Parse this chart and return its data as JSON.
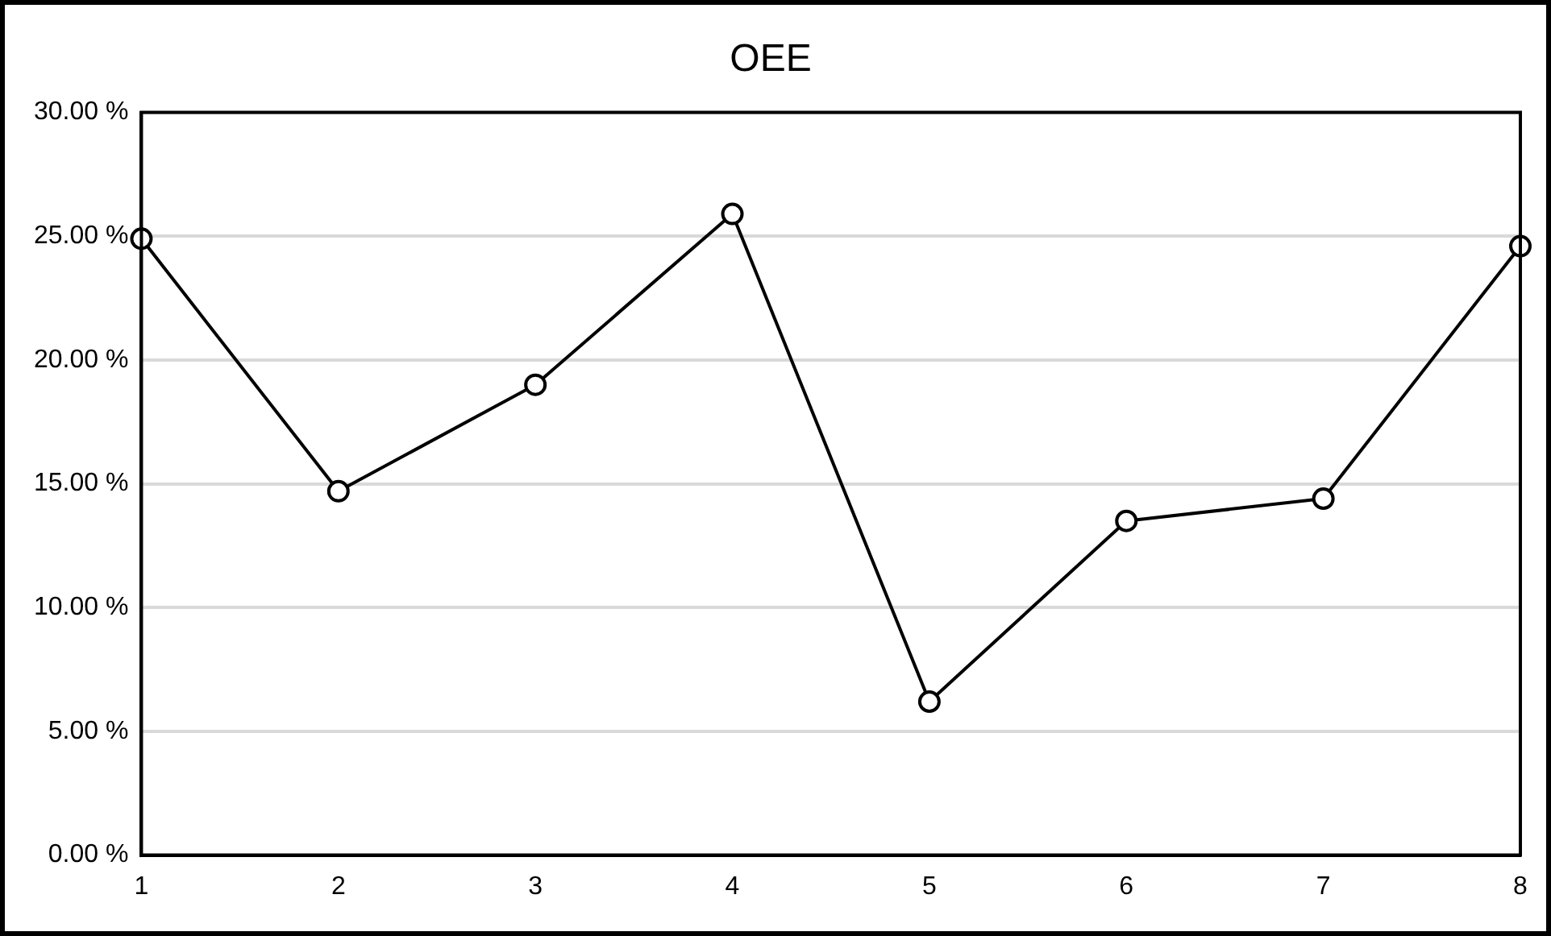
{
  "chart_data": {
    "type": "line",
    "title": "OEE",
    "categories": [
      "1",
      "2",
      "3",
      "4",
      "5",
      "6",
      "7",
      "8"
    ],
    "series": [
      {
        "color": "#000000",
        "values": [
          24.9,
          14.7,
          19.0,
          25.9,
          6.2,
          13.5,
          14.4,
          24.6
        ]
      }
    ],
    "ylim": [
      0,
      30
    ],
    "yticks": [
      {
        "value": 0,
        "label": "0.00 %"
      },
      {
        "value": 5,
        "label": "5.00 %"
      },
      {
        "value": 10,
        "label": "10.00 %"
      },
      {
        "value": 15,
        "label": "15.00 %"
      },
      {
        "value": 20,
        "label": "20.00 %"
      },
      {
        "value": 25,
        "label": "25.00 %"
      },
      {
        "value": 30,
        "label": "30.00 %"
      }
    ],
    "grid": "y",
    "legend": false,
    "marker": "circle",
    "line_style": "solid"
  }
}
